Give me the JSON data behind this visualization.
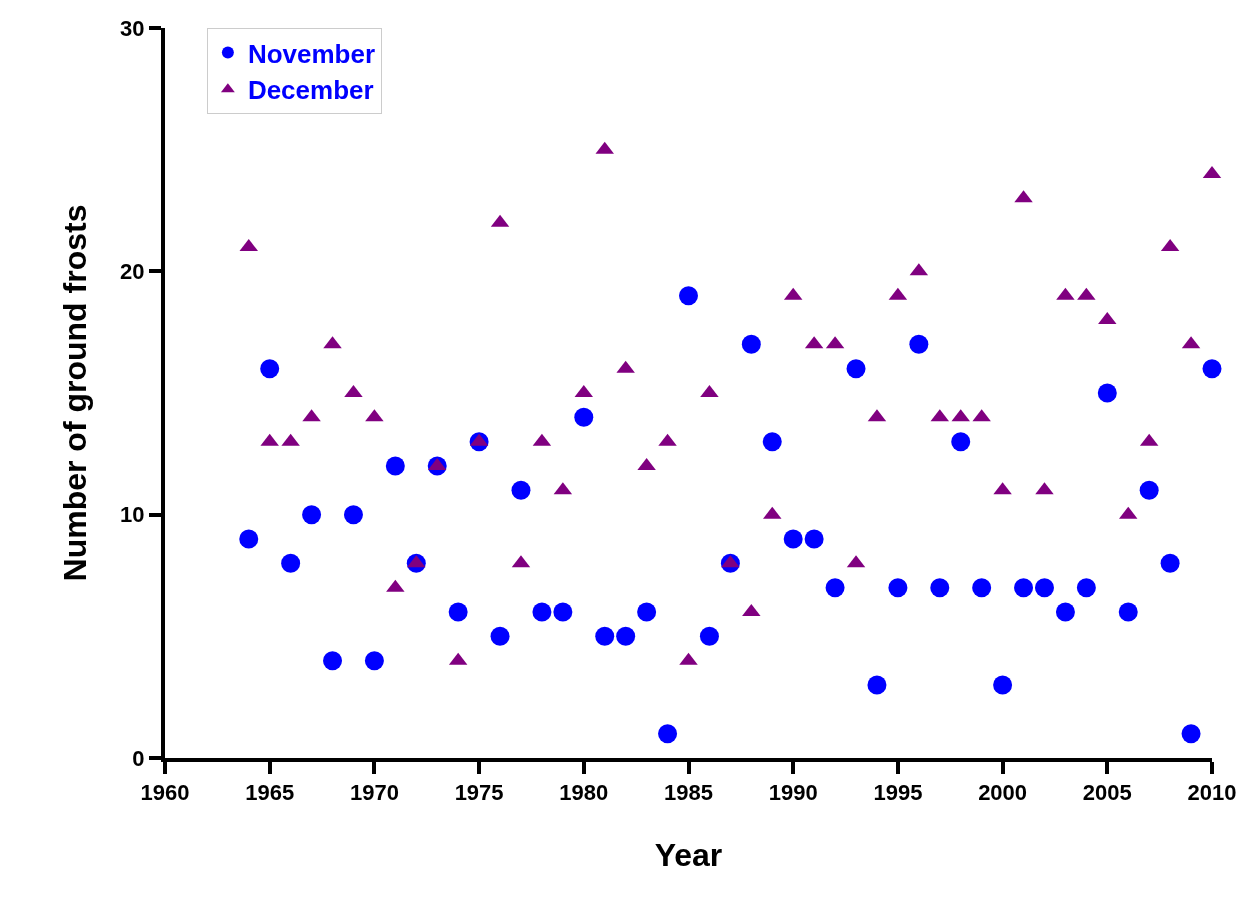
{
  "chart_data": {
    "type": "scatter",
    "xlabel": "Year",
    "ylabel": "Number of ground frosts",
    "x": [
      1964,
      1965,
      1966,
      1967,
      1968,
      1969,
      1970,
      1971,
      1972,
      1973,
      1974,
      1975,
      1976,
      1977,
      1978,
      1979,
      1980,
      1981,
      1982,
      1983,
      1984,
      1985,
      1986,
      1987,
      1988,
      1989,
      1990,
      1991,
      1992,
      1993,
      1994,
      1995,
      1996,
      1997,
      1998,
      1999,
      2000,
      2001,
      2002,
      2003,
      2004,
      2005,
      2006,
      2007,
      2008,
      2009,
      2010
    ],
    "series": [
      {
        "name": "November",
        "color": "#0000ff",
        "marker": "circle",
        "values": [
          9,
          16,
          8,
          10,
          4,
          10,
          4,
          12,
          8,
          12,
          6,
          13,
          5,
          11,
          6,
          6,
          14,
          5,
          5,
          6,
          1,
          19,
          5,
          8,
          17,
          13,
          9,
          9,
          7,
          16,
          3,
          7,
          17,
          7,
          13,
          7,
          3,
          7,
          7,
          6,
          7,
          15,
          6,
          11,
          8,
          1,
          16
        ]
      },
      {
        "name": "December",
        "color": "#800080",
        "marker": "triangle",
        "values": [
          21,
          13,
          13,
          14,
          17,
          15,
          14,
          7,
          8,
          12,
          4,
          13,
          22,
          8,
          13,
          11,
          15,
          25,
          16,
          12,
          13,
          4,
          15,
          8,
          6,
          10,
          19,
          17,
          17,
          8,
          14,
          19,
          20,
          14,
          14,
          14,
          11,
          23,
          11,
          19,
          19,
          18,
          10,
          13,
          21,
          17,
          24
        ]
      }
    ],
    "xlim": [
      1960,
      2010
    ],
    "xticks": [
      1960,
      1965,
      1970,
      1975,
      1980,
      1985,
      1990,
      1995,
      2000,
      2005,
      2010
    ],
    "ylim": [
      0,
      30
    ],
    "yticks": [
      0,
      10,
      20,
      30
    ],
    "legend": "top left"
  }
}
